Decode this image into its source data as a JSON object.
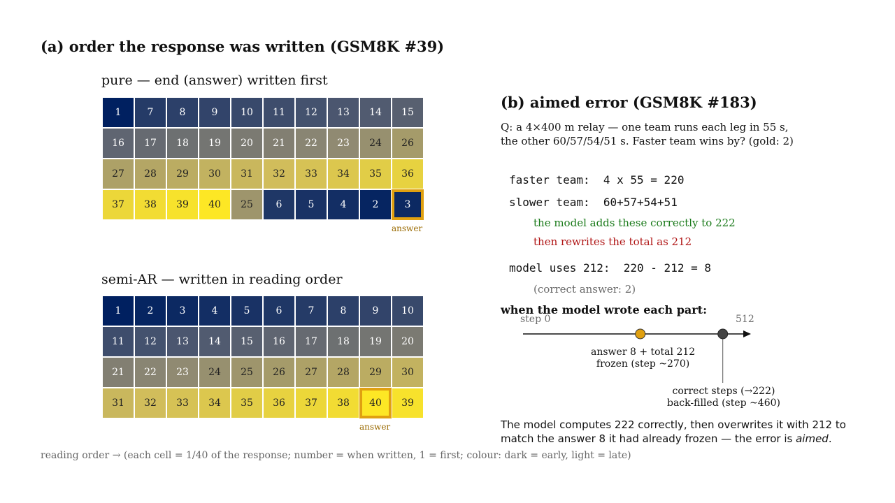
{
  "panel_a": {
    "title": "(a) order the response was written  (GSM8K #39)",
    "answer_label": "answer",
    "pure": {
      "title": "pure — end (answer) written first",
      "order": [
        1,
        7,
        8,
        9,
        10,
        11,
        12,
        13,
        14,
        15,
        16,
        17,
        18,
        19,
        20,
        21,
        22,
        23,
        24,
        26,
        27,
        28,
        29,
        30,
        31,
        32,
        33,
        34,
        35,
        36,
        37,
        38,
        39,
        40,
        25,
        6,
        5,
        4,
        2,
        3
      ],
      "answer_index": 39
    },
    "semi": {
      "title": "semi-AR — written in reading order",
      "order": [
        1,
        2,
        3,
        4,
        5,
        6,
        7,
        8,
        9,
        10,
        11,
        12,
        13,
        14,
        15,
        16,
        17,
        18,
        19,
        20,
        21,
        22,
        23,
        24,
        25,
        26,
        27,
        28,
        29,
        30,
        31,
        32,
        33,
        34,
        35,
        36,
        37,
        38,
        40,
        39
      ],
      "answer_index": 38
    },
    "footer": "reading order  →  (each cell = 1/40 of the response;  number = when written, 1 = first;  colour: dark = early, light = late)"
  },
  "panel_b": {
    "title": "(b) aimed error  (GSM8K #183)",
    "question_line1": "Q: a 4×400 m relay — one team runs each leg in 55 s,",
    "question_line2": "the other 60/57/54/51 s. Faster team wins by?  (gold: 2)",
    "faster": "faster team:  4 x 55 = 220",
    "slower": "slower team:  60+57+54+51",
    "note_correct": "the model adds these correctly to 222",
    "note_rewrite": "then rewrites the total as 212",
    "model_uses": "model uses 212:  220 - 212 = 8",
    "correct_answer": "(correct answer: 2)",
    "timeline": {
      "title": "when the model wrote each part:",
      "start_label": "step 0",
      "end_label": "512",
      "min": 0,
      "max": 512,
      "events": [
        {
          "step": 270,
          "color": "#e0a010",
          "line1": "answer 8 + total 212",
          "line2": "frozen (step ~270)"
        },
        {
          "step": 460,
          "color": "#444444",
          "line1": "correct steps (→222)",
          "line2": "back-filled (step ~460)"
        }
      ]
    },
    "summary_1": "The model computes 222 correctly, then overwrites it with 212 to",
    "summary_2": "match the answer 8 it had already frozen — the error is ",
    "summary_em": "aimed",
    "summary_end": "."
  }
}
